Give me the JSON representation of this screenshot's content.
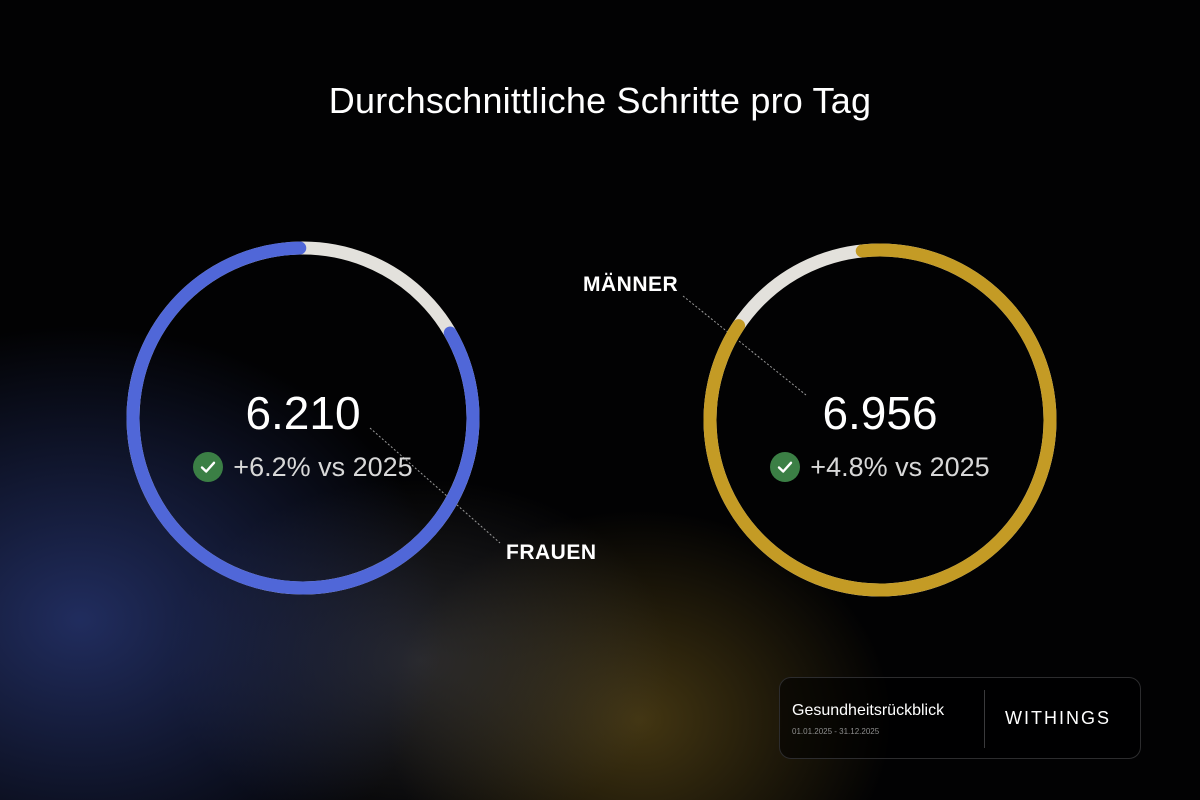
{
  "title": "Durchschnittliche Schritte pro Tag",
  "chart_data": {
    "type": "donut",
    "title": "Durchschnittliche Schritte pro Tag",
    "series": [
      {
        "name": "FRAUEN",
        "value": "6.210",
        "change": "+6.2% vs 2025",
        "filled_fraction": 0.83,
        "fill_color": "#5067d8",
        "track_color": "#e3e1dc"
      },
      {
        "name": "MÄNNER",
        "value": "6.956",
        "change": "+4.8% vs 2025",
        "filled_fraction": 0.86,
        "fill_color": "#c49b25",
        "track_color": "#e3e1dc"
      }
    ]
  },
  "icons": {
    "change_status": "check-circle-icon",
    "status_color": "#3b7f45"
  },
  "footer": {
    "report_title": "Gesundheitsrückblick",
    "date_range": "01.01.2025 - 31.12.2025",
    "brand": "WITHINGS"
  }
}
